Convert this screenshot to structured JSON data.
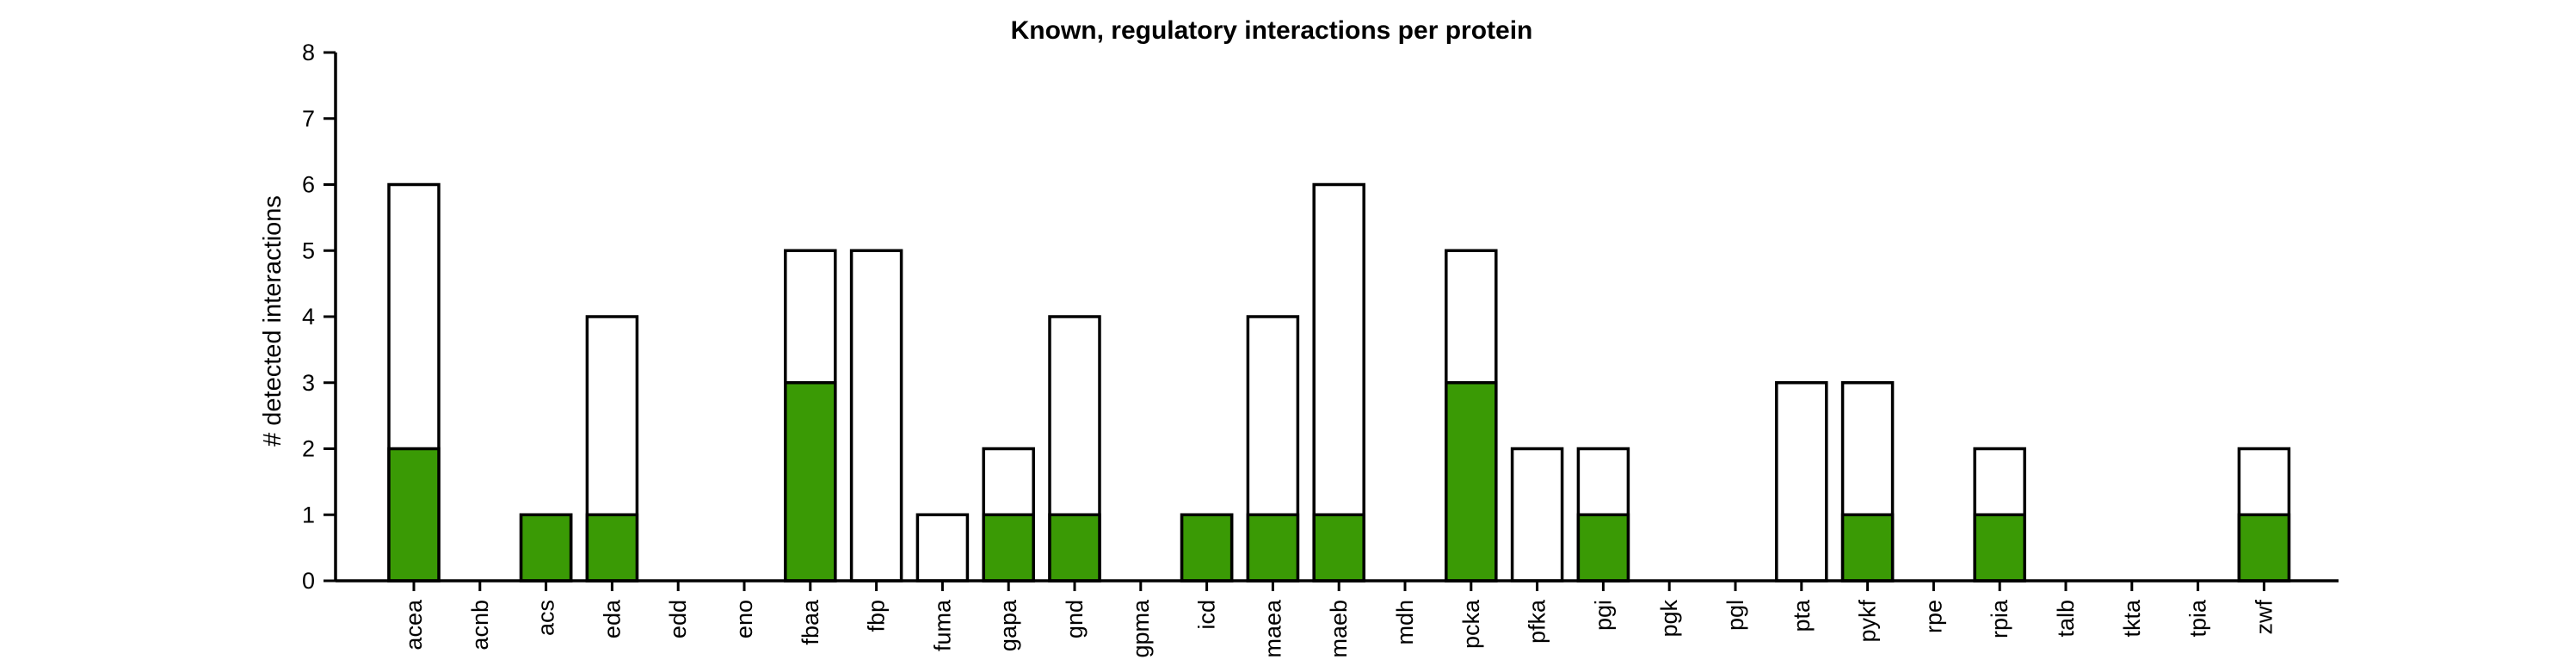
{
  "chart_data": {
    "type": "bar",
    "stacked": "overlay",
    "title": "Known, regulatory interactions per protein",
    "xlabel": "",
    "ylabel": "# detected interactions",
    "ylim": [
      0,
      8
    ],
    "yticks": [
      0,
      1,
      2,
      3,
      4,
      5,
      6,
      7,
      8
    ],
    "grid": false,
    "legend": "none",
    "categories": [
      "acea",
      "acnb",
      "acs",
      "eda",
      "edd",
      "eno",
      "fbaa",
      "fbp",
      "fuma",
      "gapa",
      "gnd",
      "gpma",
      "icd",
      "maea",
      "maeb",
      "mdh",
      "pcka",
      "pfka",
      "pgi",
      "pgk",
      "pgl",
      "pta",
      "pykf",
      "rpe",
      "rpia",
      "talb",
      "tkta",
      "tpia",
      "zwf"
    ],
    "series": [
      {
        "values": [
          6,
          0,
          1,
          4,
          0,
          0,
          5,
          5,
          1,
          2,
          4,
          0,
          1,
          4,
          6,
          0,
          5,
          2,
          2,
          0,
          0,
          3,
          3,
          0,
          2,
          0,
          0,
          0,
          2
        ],
        "color": "#ffffff"
      },
      {
        "values": [
          2,
          0,
          1,
          1,
          0,
          0,
          3,
          0,
          0,
          1,
          1,
          0,
          1,
          1,
          1,
          0,
          3,
          0,
          1,
          0,
          0,
          0,
          1,
          0,
          1,
          0,
          0,
          0,
          1
        ],
        "color": "#3a9a05"
      }
    ],
    "colors": {
      "outline": "#000000",
      "highlight": "#3a9a05",
      "total": "#ffffff"
    }
  }
}
